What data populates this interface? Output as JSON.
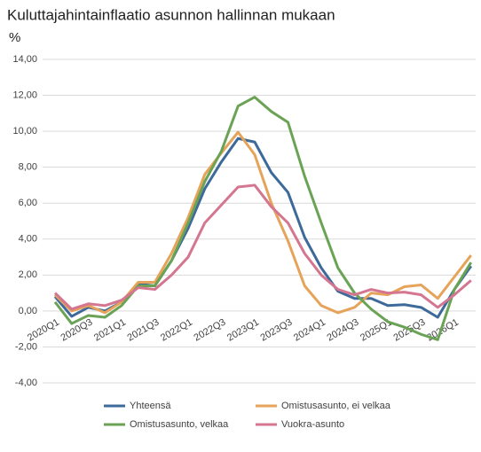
{
  "chart_data": {
    "type": "line",
    "title": "Kuluttajahintainflaatio asunnon hallinnan mukaan",
    "y_label": "%",
    "categories": [
      "2020Q1",
      null,
      "2020Q3",
      null,
      "2021Q1",
      null,
      "2021Q3",
      null,
      "2022Q1",
      null,
      "2022Q3",
      null,
      "2023Q1",
      null,
      "2023Q3",
      null,
      "2024Q1",
      null,
      "2024Q3",
      null,
      "2025Q1",
      null,
      "2025Q3",
      null,
      "2026Q1",
      null
    ],
    "series": [
      {
        "name": "Yhteensä",
        "color": "#3d6a9a",
        "values": [
          0.8,
          -0.3,
          0.2,
          0.0,
          0.5,
          1.5,
          1.4,
          2.8,
          4.6,
          6.8,
          8.3,
          9.6,
          9.4,
          7.7,
          6.6,
          4.1,
          2.4,
          1.1,
          0.7,
          0.7,
          0.3,
          0.35,
          0.2,
          -0.35,
          1.2,
          2.5
        ]
      },
      {
        "name": "Omistusasunto, ei velkaa",
        "color": "#e6a35a",
        "values": [
          0.9,
          0.0,
          0.3,
          -0.1,
          0.5,
          1.6,
          1.6,
          3.2,
          5.2,
          7.6,
          8.8,
          9.95,
          8.7,
          6.0,
          3.9,
          1.4,
          0.3,
          -0.1,
          0.2,
          1.0,
          0.9,
          1.35,
          1.45,
          0.7,
          1.9,
          3.1
        ]
      },
      {
        "name": "Omistusasunto, velkaa",
        "color": "#6aa355",
        "values": [
          0.5,
          -0.7,
          -0.25,
          -0.35,
          0.3,
          1.4,
          1.4,
          2.8,
          4.9,
          7.2,
          8.9,
          11.4,
          11.9,
          11.1,
          10.5,
          7.5,
          4.9,
          2.4,
          1.0,
          0.1,
          -0.6,
          -0.9,
          -1.3,
          -1.6,
          1.2,
          2.7
        ]
      },
      {
        "name": "Vuokra-asunto",
        "color": "#d47690",
        "values": [
          1.0,
          0.1,
          0.4,
          0.3,
          0.6,
          1.3,
          1.2,
          2.0,
          3.0,
          4.9,
          5.9,
          6.9,
          7.0,
          5.8,
          4.9,
          3.2,
          2.0,
          1.2,
          0.9,
          1.2,
          1.0,
          1.05,
          0.9,
          0.2,
          0.9,
          1.7
        ]
      }
    ],
    "ylim": [
      -4,
      14
    ],
    "yticks": [
      {
        "value": -4,
        "label": "-4,00"
      },
      {
        "value": -2,
        "label": "-2,00"
      },
      {
        "value": 0,
        "label": "0,00"
      },
      {
        "value": 2,
        "label": "2,00"
      },
      {
        "value": 4,
        "label": "4,00"
      },
      {
        "value": 6,
        "label": "6,00"
      },
      {
        "value": 8,
        "label": "8,00"
      },
      {
        "value": 10,
        "label": "10,00"
      },
      {
        "value": 12,
        "label": "12,00"
      },
      {
        "value": 14,
        "label": "14,00"
      }
    ],
    "grid": true,
    "legend": "bottom"
  }
}
